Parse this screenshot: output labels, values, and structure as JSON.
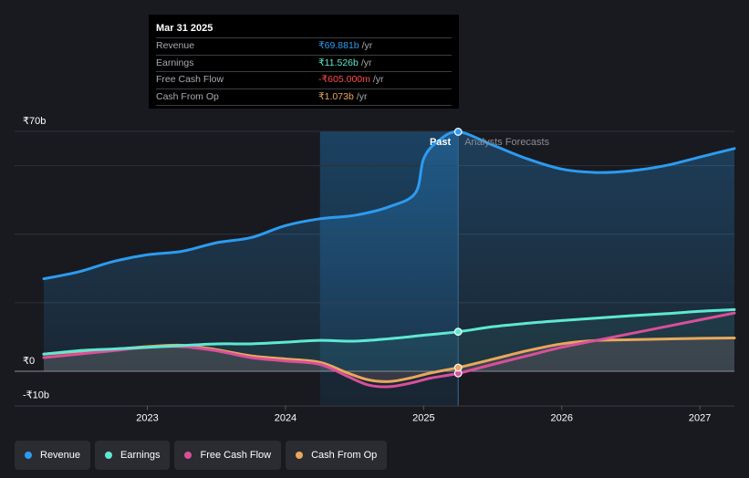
{
  "chart_data": {
    "type": "line",
    "xlim": [
      2022.25,
      2027.25
    ],
    "ylim": [
      -10,
      70
    ],
    "y_tick_labels": [
      {
        "value": 70,
        "label": "₹70b"
      },
      {
        "value": 0,
        "label": "₹0"
      },
      {
        "value": -10,
        "label": "-₹10b"
      }
    ],
    "x_ticks": [
      {
        "value": 2023,
        "label": "2023"
      },
      {
        "value": 2024,
        "label": "2024"
      },
      {
        "value": 2025,
        "label": "2025"
      },
      {
        "value": 2026,
        "label": "2026"
      },
      {
        "value": 2027,
        "label": "2027"
      }
    ],
    "past_start": 2024.25,
    "divider": 2025.25,
    "past_label": "Past",
    "forecast_label": "Analysts Forecasts",
    "series": [
      {
        "name": "Revenue",
        "color": "#2d9bf0",
        "fill": true,
        "points": [
          [
            2022.25,
            27
          ],
          [
            2022.5,
            29
          ],
          [
            2022.75,
            32
          ],
          [
            2023,
            34
          ],
          [
            2023.25,
            35
          ],
          [
            2023.5,
            37.5
          ],
          [
            2023.75,
            39
          ],
          [
            2024,
            42.5
          ],
          [
            2024.25,
            44.5
          ],
          [
            2024.5,
            45.5
          ],
          [
            2024.75,
            48
          ],
          [
            2024.94,
            52
          ],
          [
            2025.0,
            62
          ],
          [
            2025.1,
            67
          ],
          [
            2025.25,
            69.881
          ],
          [
            2025.5,
            66
          ],
          [
            2025.75,
            62
          ],
          [
            2026,
            59
          ],
          [
            2026.25,
            58
          ],
          [
            2026.5,
            58.5
          ],
          [
            2026.75,
            60
          ],
          [
            2027,
            62.5
          ],
          [
            2027.25,
            65
          ]
        ]
      },
      {
        "name": "Earnings",
        "color": "#5ee8d2",
        "fill": false,
        "points": [
          [
            2022.25,
            5
          ],
          [
            2022.5,
            6
          ],
          [
            2022.75,
            6.5
          ],
          [
            2023,
            7
          ],
          [
            2023.25,
            7.5
          ],
          [
            2023.5,
            8
          ],
          [
            2023.75,
            8
          ],
          [
            2024,
            8.5
          ],
          [
            2024.25,
            9
          ],
          [
            2024.5,
            8.8
          ],
          [
            2024.75,
            9.5
          ],
          [
            2025.0,
            10.5
          ],
          [
            2025.25,
            11.526
          ],
          [
            2025.5,
            13
          ],
          [
            2025.75,
            14
          ],
          [
            2026,
            14.8
          ],
          [
            2026.25,
            15.5
          ],
          [
            2026.5,
            16.2
          ],
          [
            2026.75,
            16.8
          ],
          [
            2027,
            17.5
          ],
          [
            2027.25,
            18
          ]
        ]
      },
      {
        "name": "Free Cash Flow",
        "color": "#d94f9a",
        "fill": false,
        "points": [
          [
            2022.25,
            4
          ],
          [
            2022.5,
            5
          ],
          [
            2022.75,
            6
          ],
          [
            2023,
            7
          ],
          [
            2023.25,
            7.2
          ],
          [
            2023.5,
            6
          ],
          [
            2023.75,
            4
          ],
          [
            2024,
            3
          ],
          [
            2024.25,
            2
          ],
          [
            2024.45,
            -1.5
          ],
          [
            2024.6,
            -4
          ],
          [
            2024.75,
            -4.5
          ],
          [
            2024.9,
            -3.5
          ],
          [
            2025.05,
            -2
          ],
          [
            2025.25,
            -0.605
          ],
          [
            2025.5,
            2
          ],
          [
            2025.75,
            4.5
          ],
          [
            2026,
            7
          ],
          [
            2026.25,
            9
          ],
          [
            2026.5,
            11
          ],
          [
            2026.75,
            13
          ],
          [
            2027,
            15
          ],
          [
            2027.25,
            17
          ]
        ]
      },
      {
        "name": "Cash From Op",
        "color": "#e8a85c",
        "fill": false,
        "points": [
          [
            2022.25,
            5
          ],
          [
            2022.5,
            5.8
          ],
          [
            2022.75,
            6.4
          ],
          [
            2023,
            7.2
          ],
          [
            2023.25,
            7.6
          ],
          [
            2023.5,
            6.3
          ],
          [
            2023.75,
            4.5
          ],
          [
            2024,
            3.6
          ],
          [
            2024.25,
            2.6
          ],
          [
            2024.45,
            -0.5
          ],
          [
            2024.6,
            -2.5
          ],
          [
            2024.75,
            -3
          ],
          [
            2024.9,
            -2
          ],
          [
            2025.05,
            -0.5
          ],
          [
            2025.25,
            1.073
          ],
          [
            2025.5,
            3.5
          ],
          [
            2025.75,
            6
          ],
          [
            2026,
            8
          ],
          [
            2026.25,
            9
          ],
          [
            2026.5,
            9.2
          ],
          [
            2026.75,
            9.4
          ],
          [
            2027,
            9.6
          ],
          [
            2027.25,
            9.7
          ]
        ]
      }
    ]
  },
  "tooltip": {
    "date": "Mar 31 2025",
    "unit": "/yr",
    "rows": [
      {
        "label": "Revenue",
        "value": "₹69.881b",
        "color": "#2d9bf0"
      },
      {
        "label": "Earnings",
        "value": "₹11.526b",
        "color": "#5ee8d2"
      },
      {
        "label": "Free Cash Flow",
        "value": "-₹605.000m",
        "color": "#ff4d4d"
      },
      {
        "label": "Cash From Op",
        "value": "₹1.073b",
        "color": "#e8a85c"
      }
    ]
  },
  "legend": [
    {
      "label": "Revenue",
      "color": "#2d9bf0"
    },
    {
      "label": "Earnings",
      "color": "#5ee8d2"
    },
    {
      "label": "Free Cash Flow",
      "color": "#d94f9a"
    },
    {
      "label": "Cash From Op",
      "color": "#e8a85c"
    }
  ]
}
